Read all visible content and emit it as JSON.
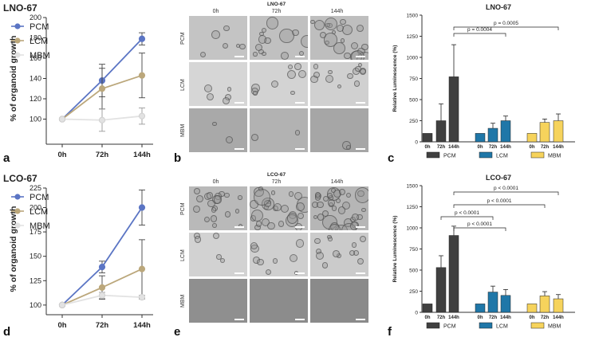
{
  "panels": {
    "a": {
      "letter": "a"
    },
    "b": {
      "letter": "b",
      "title": "LNO-67",
      "cols": [
        "0h",
        "72h",
        "144h"
      ],
      "rows": [
        "PCM",
        "LCM",
        "MBM"
      ]
    },
    "c": {
      "letter": "c"
    },
    "d": {
      "letter": "d"
    },
    "e": {
      "letter": "e",
      "title": "LCO-67",
      "cols": [
        "0h",
        "72h",
        "144h"
      ],
      "rows": [
        "PCM",
        "LCM",
        "MBM"
      ]
    },
    "f": {
      "letter": "f"
    }
  },
  "colors": {
    "PCM": "#5b75c4",
    "LCM": "#bba77b",
    "MBM": "#e2e2e2",
    "bar_PCM": "#404040",
    "bar_LCM": "#1f77a8",
    "bar_MBM": "#f6d35c"
  },
  "chart_data": [
    {
      "id": "a",
      "type": "line",
      "title": "LNO-67",
      "ylabel": "% of organoid growth",
      "xlabel": "",
      "categories": [
        "0h",
        "72h",
        "144h"
      ],
      "ylim": [
        80,
        200
      ],
      "yticks": [
        100,
        120,
        140,
        160,
        180,
        200
      ],
      "legend": "top-left",
      "series": [
        {
          "name": "PCM",
          "values": [
            100,
            138,
            179
          ],
          "err": [
            0,
            16,
            6
          ]
        },
        {
          "name": "LCM",
          "values": [
            100,
            130,
            143
          ],
          "err": [
            0,
            20,
            22
          ]
        },
        {
          "name": "MBM",
          "values": [
            100,
            99,
            103
          ],
          "err": [
            0,
            11,
            8
          ]
        }
      ]
    },
    {
      "id": "d",
      "type": "line",
      "title": "LCO-67",
      "ylabel": "% of organoid growth",
      "xlabel": "",
      "categories": [
        "0h",
        "72h",
        "144h"
      ],
      "ylim": [
        95,
        220
      ],
      "yticks": [
        100,
        125,
        150,
        175,
        200,
        225
      ],
      "legend": "top-left",
      "series": [
        {
          "name": "PCM",
          "values": [
            100,
            139,
            200
          ],
          "err": [
            0,
            6,
            18
          ]
        },
        {
          "name": "LCM",
          "values": [
            100,
            118,
            137
          ],
          "err": [
            0,
            12,
            30
          ]
        },
        {
          "name": "MBM",
          "values": [
            100,
            110,
            108
          ],
          "err": [
            0,
            3,
            2
          ]
        }
      ]
    },
    {
      "id": "c",
      "type": "bar",
      "title": "LNO-67",
      "ylabel": "Relative Luminescence (%)",
      "categories": [
        "0h",
        "72h",
        "144h"
      ],
      "ylim": [
        0,
        1500
      ],
      "yticks": [
        0,
        250,
        500,
        750,
        1000,
        1250,
        1500
      ],
      "legend": "bottom",
      "series": [
        {
          "name": "PCM",
          "values": [
            100,
            250,
            770
          ],
          "err": [
            0,
            200,
            380
          ]
        },
        {
          "name": "LCM",
          "values": [
            100,
            160,
            250
          ],
          "err": [
            0,
            60,
            55
          ]
        },
        {
          "name": "MBM",
          "values": [
            100,
            230,
            250
          ],
          "err": [
            0,
            40,
            80
          ]
        }
      ],
      "annotations": [
        {
          "text": "p = 0.0004",
          "from": [
            0,
            2
          ],
          "to": [
            1,
            2
          ]
        },
        {
          "text": "p = 0.0005",
          "from": [
            0,
            2
          ],
          "to": [
            2,
            2
          ]
        }
      ]
    },
    {
      "id": "f",
      "type": "bar",
      "title": "LCO-67",
      "ylabel": "Relative Luminescence (%)",
      "categories": [
        "0h",
        "72h",
        "144h"
      ],
      "ylim": [
        0,
        1500
      ],
      "yticks": [
        0,
        250,
        500,
        750,
        1000,
        1250,
        1500
      ],
      "legend": "bottom",
      "series": [
        {
          "name": "PCM",
          "values": [
            100,
            530,
            910
          ],
          "err": [
            0,
            140,
            110
          ]
        },
        {
          "name": "LCM",
          "values": [
            100,
            240,
            200
          ],
          "err": [
            0,
            70,
            70
          ]
        },
        {
          "name": "MBM",
          "values": [
            100,
            195,
            160
          ],
          "err": [
            0,
            50,
            50
          ]
        }
      ],
      "annotations": [
        {
          "text": "p < 0.0001",
          "from": [
            0,
            1
          ],
          "to": [
            1,
            1
          ]
        },
        {
          "text": "p < 0.0001",
          "from": [
            0,
            2
          ],
          "to": [
            1,
            2
          ]
        },
        {
          "text": "p < 0.0001",
          "from": [
            0,
            2
          ],
          "to": [
            2,
            1
          ]
        },
        {
          "text": "p < 0.0001",
          "from": [
            0,
            2
          ],
          "to": [
            2,
            2
          ]
        }
      ]
    }
  ]
}
